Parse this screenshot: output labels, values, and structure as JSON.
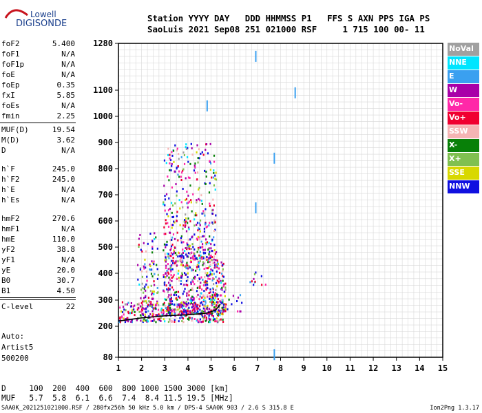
{
  "logo": {
    "line1": "Lowell",
    "line2": "DIGISONDE"
  },
  "header": {
    "row1": "Station YYYY DAY   DDD HHMMSS P1   FFS S AXN PPS IGA PS",
    "row2": "SaoLuis 2021 Sep08 251 021000 RSF     1 715 100 00- 11"
  },
  "params": {
    "group1": [
      {
        "label": "foF2",
        "value": "5.400"
      },
      {
        "label": "foF1",
        "value": "N/A"
      },
      {
        "label": "foF1p",
        "value": "N/A"
      },
      {
        "label": "foE",
        "value": "N/A"
      },
      {
        "label": "foEp",
        "value": "0.35"
      },
      {
        "label": "fxI",
        "value": "5.85"
      },
      {
        "label": "foEs",
        "value": "N/A"
      },
      {
        "label": "fmin",
        "value": "2.25"
      }
    ],
    "group2": [
      {
        "label": "MUF(D)",
        "value": "19.54"
      },
      {
        "label": "M(D)",
        "value": "3.62"
      },
      {
        "label": "D",
        "value": "N/A"
      }
    ],
    "group3": [
      {
        "label": "h`F",
        "value": "245.0"
      },
      {
        "label": "h`F2",
        "value": "245.0"
      },
      {
        "label": "h`E",
        "value": "N/A"
      },
      {
        "label": "h`Es",
        "value": "N/A"
      }
    ],
    "group4": [
      {
        "label": "hmF2",
        "value": "270.6"
      },
      {
        "label": "hmF1",
        "value": "N/A"
      },
      {
        "label": "hmE",
        "value": "110.0"
      },
      {
        "label": "yF2",
        "value": "38.8"
      },
      {
        "label": "yF1",
        "value": "N/A"
      },
      {
        "label": "yE",
        "value": "20.0"
      },
      {
        "label": "B0",
        "value": "30.7"
      },
      {
        "label": "B1",
        "value": "4.50"
      }
    ],
    "group5": [
      {
        "label": "C-level",
        "value": "22"
      }
    ]
  },
  "auto": {
    "line1": "Auto:",
    "line2": "Artist5",
    "line3": "500200"
  },
  "legend": [
    {
      "name": "NoVal",
      "color": "#a0a0a0"
    },
    {
      "name": "NNE",
      "color": "#00e5ff"
    },
    {
      "name": "E",
      "color": "#3aa0f0"
    },
    {
      "name": "W",
      "color": "#a800a8"
    },
    {
      "name": "Vo-",
      "color": "#ff28a8"
    },
    {
      "name": "Vo+",
      "color": "#f00030"
    },
    {
      "name": "SSW",
      "color": "#f5b4b4"
    },
    {
      "name": "X-",
      "color": "#088008"
    },
    {
      "name": "X+",
      "color": "#80c050"
    },
    {
      "name": "SSE",
      "color": "#d8d800"
    },
    {
      "name": "NNW",
      "color": "#1010e0"
    }
  ],
  "mufTable": {
    "row1": "D     100  200  400  600  800 1000 1500 3000 [km]",
    "row2": "MUF   5.7  5.8  6.1  6.6  7.4  8.4 11.5 19.5 [MHz]"
  },
  "footer": {
    "left": "SAA0K_2021251021000.RSF / 280fx256h 50 kHz 5.0 km / DPS-4 SAA0K 903 / 2.6 S 315.8 E",
    "right": "Ion2Png 1.3.17"
  },
  "chart_data": {
    "type": "scatter",
    "xlim": [
      1,
      15
    ],
    "xticks": [
      1,
      2,
      3,
      4,
      5,
      6,
      7,
      8,
      9,
      10,
      11,
      12,
      13,
      14,
      15
    ],
    "yticks": [
      80,
      200,
      300,
      400,
      500,
      600,
      700,
      800,
      900,
      1000,
      1100,
      1280
    ],
    "yscale": "reciprocal",
    "grid": true,
    "legend": "right",
    "echo_clusters": [
      {
        "freq": [
          1.0,
          5.6
        ],
        "height": [
          220,
          300
        ],
        "density": "high",
        "note": "F-trace base"
      },
      {
        "freq": [
          2.9,
          5.6
        ],
        "height": [
          250,
          460
        ],
        "density": "high"
      },
      {
        "freq": [
          2.9,
          5.2
        ],
        "height": [
          460,
          900
        ],
        "density": "medium",
        "note": "spread-F columns"
      },
      {
        "freq": [
          1.8,
          2.7
        ],
        "height": [
          270,
          560
        ],
        "density": "medium"
      },
      {
        "freq": [
          5.4,
          6.3
        ],
        "height": [
          260,
          330
        ],
        "density": "low"
      },
      {
        "freq": [
          6.6,
          7.4
        ],
        "height": [
          360,
          430
        ],
        "density": "low"
      }
    ],
    "isolated_echoes": [
      {
        "freq": 4.8,
        "height": 1040
      },
      {
        "freq": 8.6,
        "height": 1090
      },
      {
        "freq": 7.7,
        "height": 840
      },
      {
        "freq": 6.9,
        "height": 650
      },
      {
        "freq": 7.7,
        "height": 90
      },
      {
        "freq": 6.9,
        "height": 1230
      }
    ],
    "trace_line": [
      {
        "freq": 1.0,
        "height": 220
      },
      {
        "freq": 2.0,
        "height": 232
      },
      {
        "freq": 3.0,
        "height": 240
      },
      {
        "freq": 4.0,
        "height": 244
      },
      {
        "freq": 4.8,
        "height": 250
      },
      {
        "freq": 5.2,
        "height": 262
      },
      {
        "freq": 5.4,
        "height": 285
      }
    ]
  }
}
